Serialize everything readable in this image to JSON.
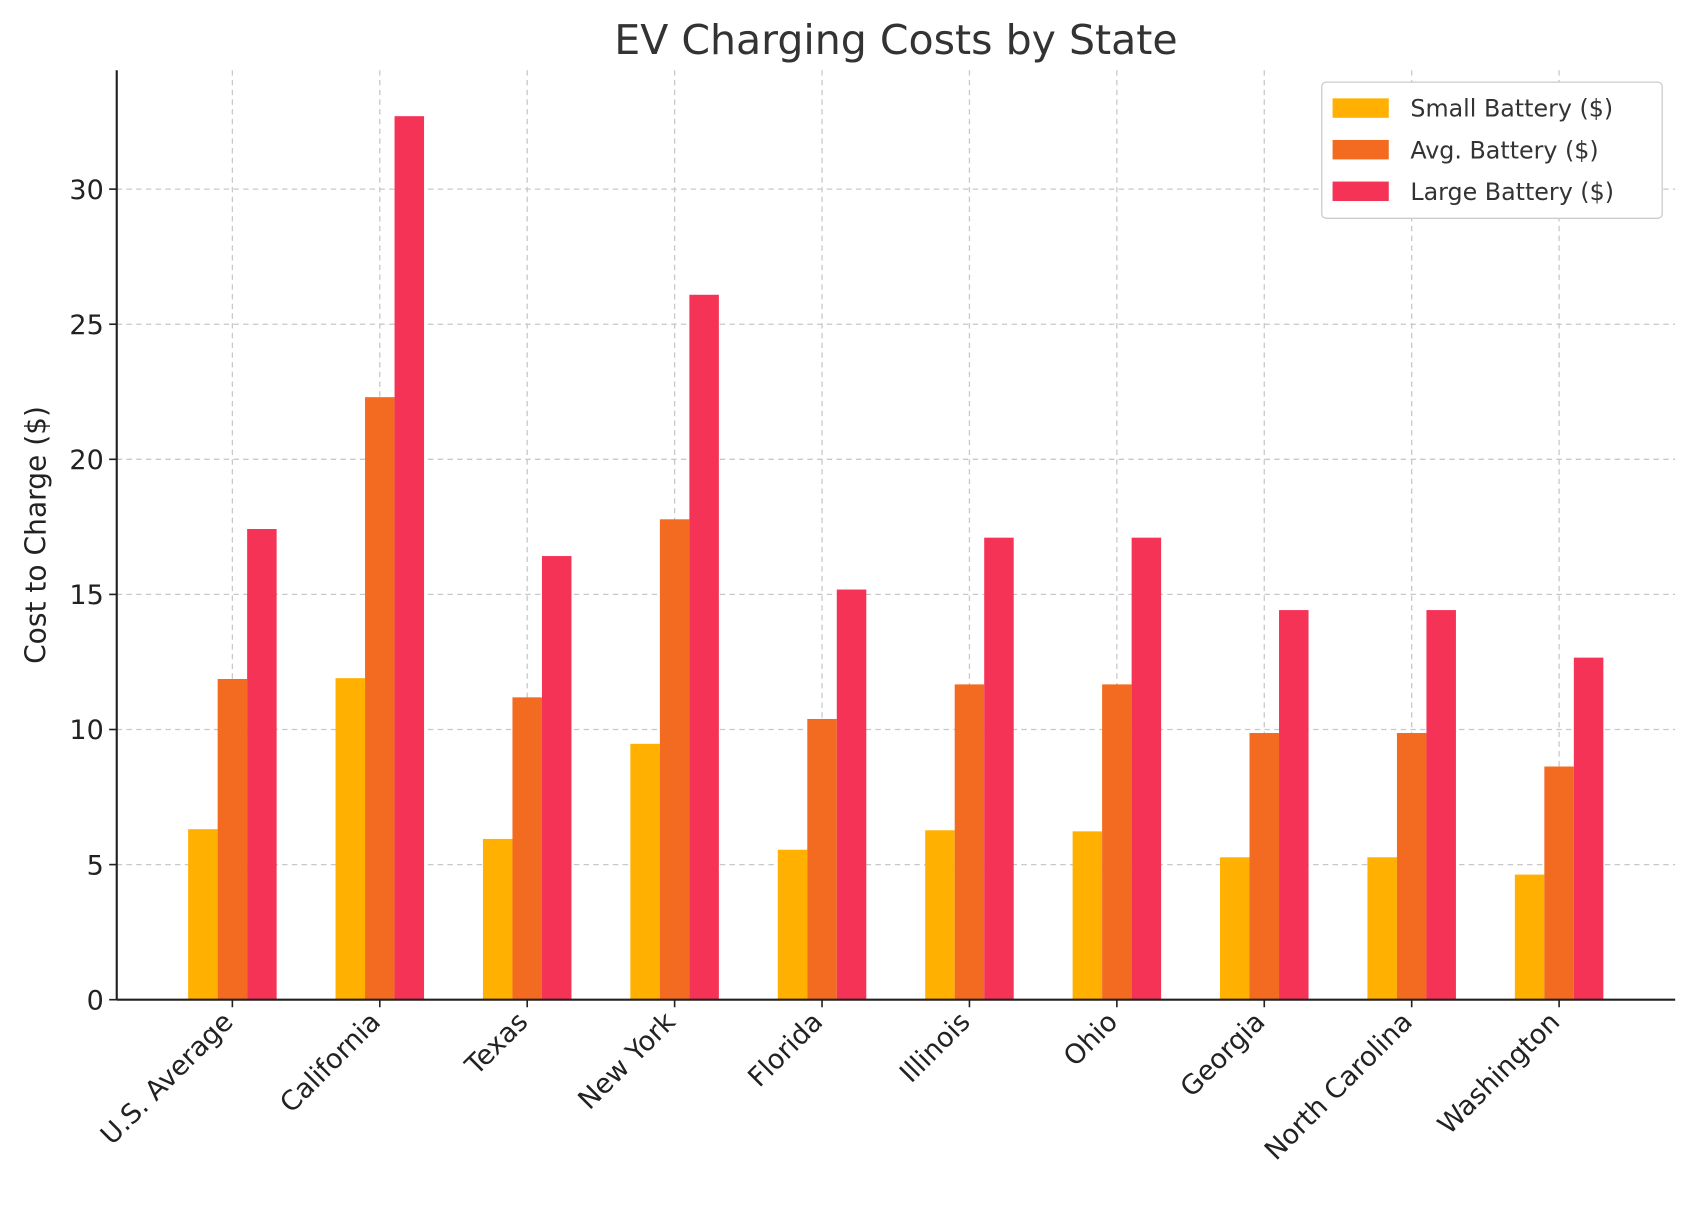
{
  "chart_data": {
    "type": "bar",
    "title": "EV Charging Costs by State",
    "xlabel": "",
    "ylabel": "Cost to Charge ($)",
    "ylim": [
      0,
      34.4
    ],
    "yticks": [
      0,
      5,
      10,
      15,
      20,
      25,
      30
    ],
    "grid": true,
    "legend_position": "top-right",
    "categories": [
      "U.S. Average",
      "California",
      "Texas",
      "New York",
      "Florida",
      "Illinois",
      "Ohio",
      "Georgia",
      "North Carolina",
      "Washington"
    ],
    "series": [
      {
        "name": "Small Battery ($)",
        "color": "#FFB000",
        "values": [
          6.31,
          11.9,
          5.95,
          9.47,
          5.55,
          6.27,
          6.23,
          5.27,
          5.27,
          4.63
        ]
      },
      {
        "name": "Avg. Battery ($)",
        "color": "#F26B21",
        "values": [
          11.87,
          22.3,
          11.19,
          17.78,
          10.39,
          11.67,
          11.67,
          9.87,
          9.87,
          8.63
        ]
      },
      {
        "name": "Large Battery ($)",
        "color": "#F53357",
        "values": [
          17.42,
          32.7,
          16.42,
          26.09,
          15.18,
          17.1,
          17.1,
          14.42,
          14.42,
          12.66
        ]
      }
    ]
  }
}
